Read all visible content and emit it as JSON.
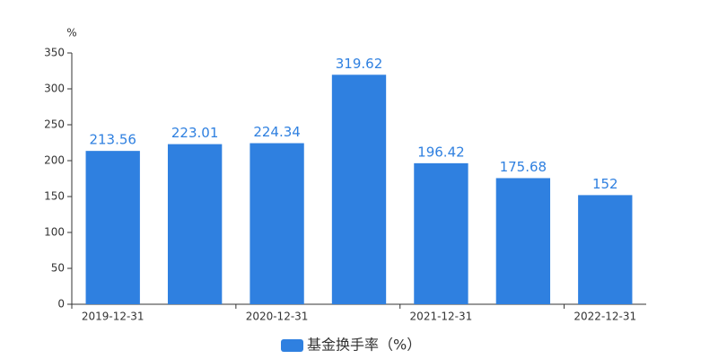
{
  "chart_data": {
    "type": "bar",
    "y_label": "%",
    "categories": [
      "2019-12-31",
      null,
      "2020-12-31",
      null,
      "2021-12-31",
      null,
      "2022-12-31"
    ],
    "series": [
      {
        "name": "基金换手率（%）",
        "color": "#2f80e0",
        "values": [
          213.56,
          223.01,
          224.34,
          319.62,
          196.42,
          175.68,
          152
        ]
      }
    ],
    "ylim": [
      0,
      350
    ],
    "yticks": [
      0,
      50,
      100,
      150,
      200,
      250,
      300,
      350
    ],
    "grid": false,
    "legend": "bottom"
  }
}
